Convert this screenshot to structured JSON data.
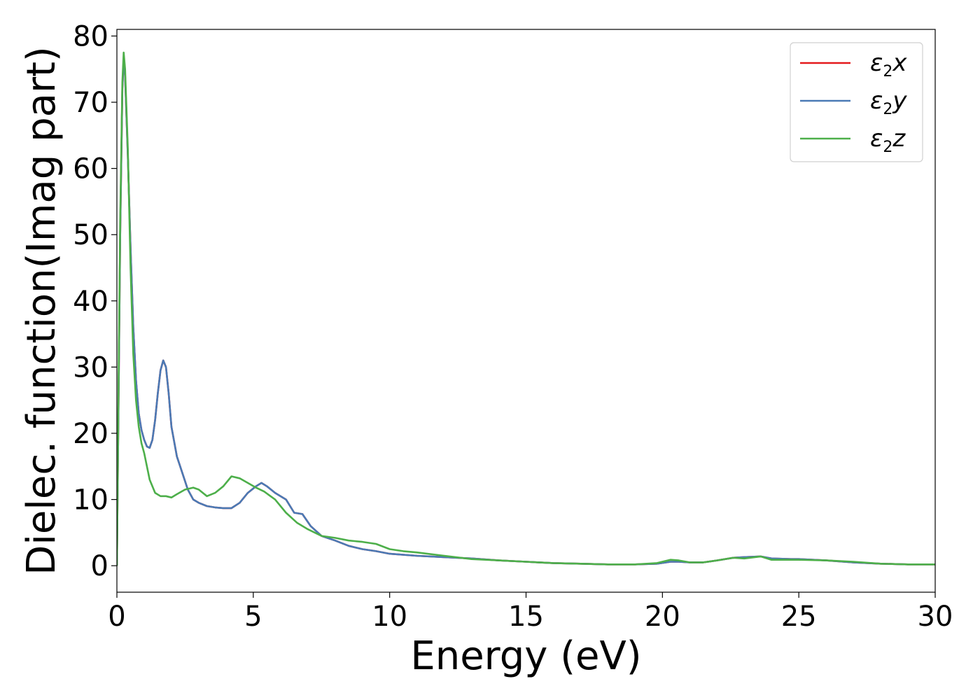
{
  "chart_data": {
    "type": "line",
    "xlabel": "Energy (eV)",
    "ylabel": "Dielec. function(Imag part)",
    "xlim": [
      0,
      30
    ],
    "ylim": [
      -4,
      81
    ],
    "xticks": [
      0,
      5,
      10,
      15,
      20,
      25,
      30
    ],
    "yticks": [
      0,
      10,
      20,
      30,
      40,
      50,
      60,
      70,
      80
    ],
    "grid": false,
    "legend_position": "top-right",
    "series": [
      {
        "name": "ε2x",
        "label_main": "ε",
        "label_sub": "2",
        "label_tail": "x",
        "color": "#e41a1c",
        "x": [
          0,
          0.05,
          0.12,
          0.2,
          0.25,
          0.3,
          0.4,
          0.5,
          0.6,
          0.7,
          0.8,
          0.9,
          1.0,
          1.1,
          1.2,
          1.3,
          1.4,
          1.5,
          1.6,
          1.7,
          1.8,
          1.9,
          2.0,
          2.2,
          2.4,
          2.6,
          2.8,
          3.0,
          3.3,
          3.6,
          3.9,
          4.2,
          4.5,
          4.8,
          5.1,
          5.3,
          5.5,
          5.8,
          6.2,
          6.5,
          6.8,
          7.1,
          7.5,
          8.0,
          8.5,
          9.0,
          9.5,
          10.0,
          11.0,
          12.0,
          13.0,
          14.0,
          15.0,
          16.0,
          17.0,
          18.0,
          19.0,
          19.8,
          20.3,
          20.6,
          21.0,
          21.5,
          22.0,
          22.6,
          23.0,
          23.6,
          24.0,
          24.7,
          25.0,
          26.0,
          27.0,
          28.0,
          29.0,
          30.0
        ],
        "y": [
          0,
          20,
          50,
          72,
          76.5,
          74,
          62,
          48,
          36,
          28,
          23,
          20.5,
          19,
          18,
          17.8,
          19,
          22,
          26,
          29.5,
          31,
          30,
          26,
          21,
          16.5,
          14,
          11.5,
          10,
          9.5,
          9,
          8.8,
          8.7,
          8.7,
          9.5,
          11,
          12,
          12.5,
          12,
          11,
          10,
          8,
          7.8,
          6,
          4.5,
          3.8,
          3,
          2.5,
          2.2,
          1.8,
          1.5,
          1.3,
          1.1,
          0.8,
          0.6,
          0.4,
          0.3,
          0.2,
          0.2,
          0.3,
          0.6,
          0.6,
          0.5,
          0.5,
          0.8,
          1.2,
          1.3,
          1.4,
          1.1,
          1.0,
          1.0,
          0.8,
          0.5,
          0.3,
          0.2,
          0.2
        ]
      },
      {
        "name": "ε2y",
        "label_main": "ε",
        "label_sub": "2",
        "label_tail": "y",
        "color": "#4a7ab5",
        "x": [
          0,
          0.05,
          0.12,
          0.2,
          0.25,
          0.3,
          0.4,
          0.5,
          0.6,
          0.7,
          0.8,
          0.9,
          1.0,
          1.1,
          1.2,
          1.3,
          1.4,
          1.5,
          1.6,
          1.7,
          1.8,
          1.9,
          2.0,
          2.2,
          2.4,
          2.6,
          2.8,
          3.0,
          3.3,
          3.6,
          3.9,
          4.2,
          4.5,
          4.8,
          5.1,
          5.3,
          5.5,
          5.8,
          6.2,
          6.5,
          6.8,
          7.1,
          7.5,
          8.0,
          8.5,
          9.0,
          9.5,
          10.0,
          11.0,
          12.0,
          13.0,
          14.0,
          15.0,
          16.0,
          17.0,
          18.0,
          19.0,
          19.8,
          20.3,
          20.6,
          21.0,
          21.5,
          22.0,
          22.6,
          23.0,
          23.6,
          24.0,
          24.7,
          25.0,
          26.0,
          27.0,
          28.0,
          29.0,
          30.0
        ],
        "y": [
          0,
          20,
          50,
          72,
          76.5,
          74,
          62,
          48,
          36,
          28,
          23,
          20.5,
          19,
          18,
          17.8,
          19,
          22,
          26,
          29.5,
          31,
          30,
          26,
          21,
          16.5,
          14,
          11.5,
          10,
          9.5,
          9,
          8.8,
          8.7,
          8.7,
          9.5,
          11,
          12,
          12.5,
          12,
          11,
          10,
          8,
          7.8,
          6,
          4.5,
          3.8,
          3,
          2.5,
          2.2,
          1.8,
          1.5,
          1.3,
          1.1,
          0.8,
          0.6,
          0.4,
          0.3,
          0.2,
          0.2,
          0.3,
          0.6,
          0.6,
          0.5,
          0.5,
          0.8,
          1.2,
          1.3,
          1.4,
          1.1,
          1.0,
          1.0,
          0.8,
          0.5,
          0.3,
          0.2,
          0.2
        ]
      },
      {
        "name": "ε2z",
        "label_main": "ε",
        "label_sub": "2",
        "label_tail": "z",
        "color": "#4daf4a",
        "x": [
          0,
          0.05,
          0.12,
          0.2,
          0.25,
          0.3,
          0.4,
          0.5,
          0.6,
          0.7,
          0.8,
          0.9,
          1.0,
          1.2,
          1.4,
          1.6,
          1.8,
          2.0,
          2.2,
          2.5,
          2.8,
          3.0,
          3.3,
          3.6,
          3.9,
          4.2,
          4.5,
          4.8,
          5.1,
          5.4,
          5.8,
          6.2,
          6.6,
          7.0,
          7.5,
          8.0,
          8.5,
          9.0,
          9.5,
          10.0,
          10.5,
          11.0,
          12.0,
          13.0,
          14.0,
          15.0,
          16.0,
          17.0,
          18.0,
          19.0,
          19.8,
          20.3,
          20.6,
          21.0,
          21.5,
          22.0,
          22.6,
          23.0,
          23.6,
          24.0,
          24.7,
          25.0,
          26.0,
          27.0,
          28.0,
          29.0,
          30.0
        ],
        "y": [
          0,
          22,
          52,
          73,
          77.5,
          75,
          63,
          45,
          32,
          25,
          21,
          18.5,
          17,
          13,
          11,
          10.5,
          10.5,
          10.3,
          10.8,
          11.5,
          11.8,
          11.5,
          10.5,
          11,
          12,
          13.5,
          13.2,
          12.5,
          11.8,
          11.2,
          10,
          8,
          6.5,
          5.5,
          4.5,
          4.2,
          3.8,
          3.6,
          3.3,
          2.5,
          2.2,
          2.0,
          1.5,
          1.0,
          0.8,
          0.6,
          0.4,
          0.3,
          0.2,
          0.2,
          0.4,
          0.9,
          0.8,
          0.5,
          0.5,
          0.8,
          1.2,
          1.1,
          1.4,
          0.9,
          0.9,
          0.9,
          0.8,
          0.6,
          0.3,
          0.2,
          0.2
        ]
      }
    ]
  }
}
